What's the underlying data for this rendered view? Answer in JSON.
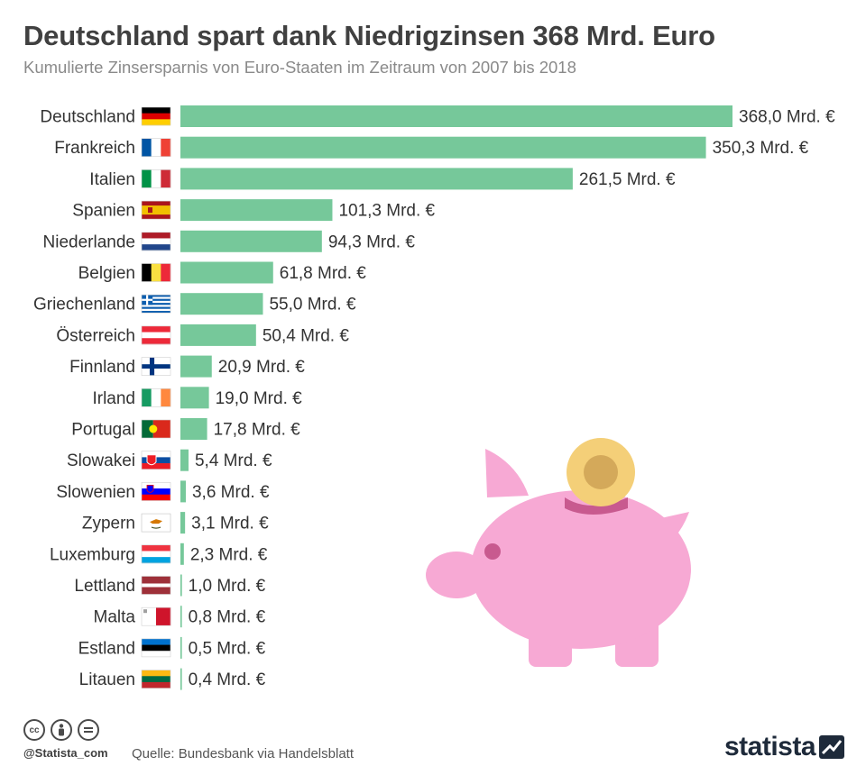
{
  "title": "Deutschland spart dank Niedrigzinsen 368 Mrd. Euro",
  "subtitle": "Kumulierte Zinsersparnis von Euro-Staaten im Zeitraum von 2007 bis 2018",
  "chart_data": {
    "type": "bar",
    "orientation": "horizontal",
    "unit_suffix": " Mrd. €",
    "bar_color": "#76c89a",
    "categories": [
      "Deutschland",
      "Frankreich",
      "Italien",
      "Spanien",
      "Niederlande",
      "Belgien",
      "Griechenland",
      "Österreich",
      "Finnland",
      "Irland",
      "Portugal",
      "Slowakei",
      "Slowenien",
      "Zypern",
      "Luxemburg",
      "Lettland",
      "Malta",
      "Estland",
      "Litauen"
    ],
    "values": [
      368.0,
      350.3,
      261.5,
      101.3,
      94.3,
      61.8,
      55.0,
      50.4,
      20.9,
      19.0,
      17.8,
      5.4,
      3.6,
      3.1,
      2.3,
      1.0,
      0.8,
      0.5,
      0.4
    ],
    "value_labels": [
      "368,0 Mrd. €",
      "350,3 Mrd. €",
      "261,5 Mrd. €",
      "101,3 Mrd. €",
      "94,3 Mrd. €",
      "61,8 Mrd. €",
      "55,0 Mrd. €",
      "50,4 Mrd. €",
      "20,9 Mrd. €",
      "19,0 Mrd. €",
      "17,8 Mrd. €",
      "5,4 Mrd. €",
      "3,6 Mrd. €",
      "3,1 Mrd. €",
      "2,3 Mrd. €",
      "1,0 Mrd. €",
      "0,8 Mrd. €",
      "0,5 Mrd. €",
      "0,4 Mrd. €"
    ],
    "flags": [
      "germany-flag-icon",
      "france-flag-icon",
      "italy-flag-icon",
      "spain-flag-icon",
      "netherlands-flag-icon",
      "belgium-flag-icon",
      "greece-flag-icon",
      "austria-flag-icon",
      "finland-flag-icon",
      "ireland-flag-icon",
      "portugal-flag-icon",
      "slovakia-flag-icon",
      "slovenia-flag-icon",
      "cyprus-flag-icon",
      "luxembourg-flag-icon",
      "latvia-flag-icon",
      "malta-flag-icon",
      "estonia-flag-icon",
      "lithuania-flag-icon"
    ],
    "xlim": [
      0,
      368
    ]
  },
  "footer": {
    "handle": "@Statista_com",
    "source": "Quelle: Bundesbank via Handelsblatt",
    "logo": "statista",
    "license_icons": [
      "cc-icon",
      "by-icon",
      "nd-icon"
    ]
  },
  "illustration": [
    "piggy-bank-icon",
    "coin-icon"
  ],
  "colors": {
    "bar": "#76c89a",
    "pig": "#f7a9d4",
    "pig_dark": "#c85a8f",
    "coin": "#f4cf78",
    "coin_center": "#d4a95a",
    "title": "#404040",
    "subtitle": "#8a8a8a"
  }
}
